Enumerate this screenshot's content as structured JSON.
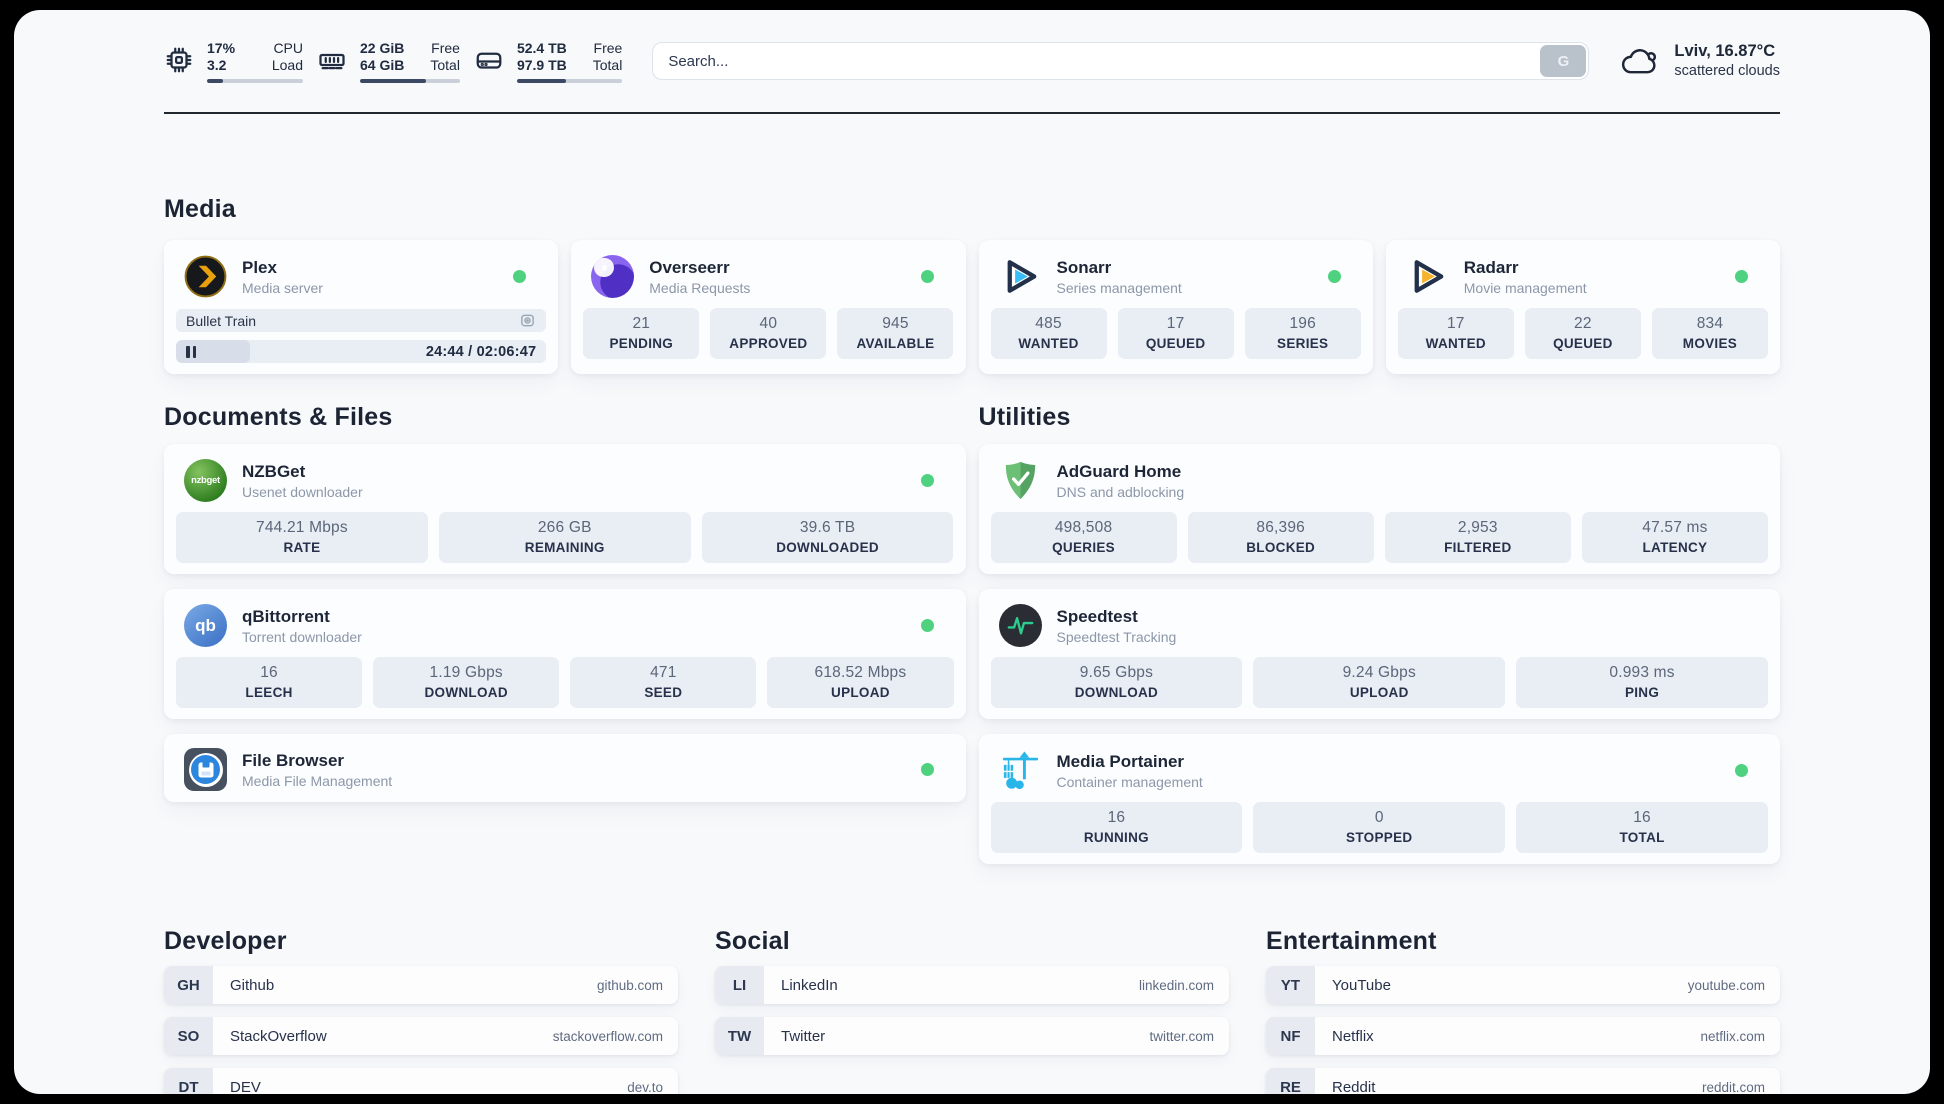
{
  "header": {
    "cpu": {
      "value_top": "17%",
      "value_bottom": "3.2",
      "label_top": "CPU",
      "label_bottom": "Load",
      "progress_percent": 17
    },
    "memory": {
      "value_top": "22 GiB",
      "value_bottom": "64 GiB",
      "label_top": "Free",
      "label_bottom": "Total",
      "progress_percent": 66
    },
    "disk": {
      "value_top": "52.4 TB",
      "value_bottom": "97.9 TB",
      "label_top": "Free",
      "label_bottom": "Total",
      "progress_percent": 47
    },
    "search": {
      "placeholder": "Search...",
      "button_label": "G"
    },
    "weather": {
      "location_temp": "Lviv, 16.87°C",
      "condition": "scattered clouds"
    }
  },
  "sections": {
    "media": "Media",
    "documents": "Documents & Files",
    "utilities": "Utilities",
    "developer": "Developer",
    "social": "Social",
    "entertainment": "Entertainment"
  },
  "apps": {
    "plex": {
      "name": "Plex",
      "subtitle": "Media server",
      "now_playing": "Bullet Train",
      "elapsed": "24:44",
      "duration": "02:06:47",
      "time_display": "24:44 / 02:06:47",
      "progress_percent": 20
    },
    "overseerr": {
      "name": "Overseerr",
      "subtitle": "Media Requests",
      "stats": [
        {
          "value": "21",
          "label": "PENDING"
        },
        {
          "value": "40",
          "label": "APPROVED"
        },
        {
          "value": "945",
          "label": "AVAILABLE"
        }
      ]
    },
    "sonarr": {
      "name": "Sonarr",
      "subtitle": "Series management",
      "stats": [
        {
          "value": "485",
          "label": "WANTED"
        },
        {
          "value": "17",
          "label": "QUEUED"
        },
        {
          "value": "196",
          "label": "SERIES"
        }
      ]
    },
    "radarr": {
      "name": "Radarr",
      "subtitle": "Movie management",
      "stats": [
        {
          "value": "17",
          "label": "WANTED"
        },
        {
          "value": "22",
          "label": "QUEUED"
        },
        {
          "value": "834",
          "label": "MOVIES"
        }
      ]
    },
    "nzbget": {
      "name": "NZBGet",
      "subtitle": "Usenet downloader",
      "icon_text": "nzbget",
      "stats": [
        {
          "value": "744.21 Mbps",
          "label": "RATE"
        },
        {
          "value": "266 GB",
          "label": "REMAINING"
        },
        {
          "value": "39.6 TB",
          "label": "DOWNLOADED"
        }
      ]
    },
    "qbittorrent": {
      "name": "qBittorrent",
      "subtitle": "Torrent downloader",
      "icon_text": "qb",
      "stats": [
        {
          "value": "16",
          "label": "LEECH"
        },
        {
          "value": "1.19 Gbps",
          "label": "DOWNLOAD"
        },
        {
          "value": "471",
          "label": "SEED"
        },
        {
          "value": "618.52 Mbps",
          "label": "UPLOAD"
        }
      ]
    },
    "filebrowser": {
      "name": "File Browser",
      "subtitle": "Media File Management"
    },
    "adguard": {
      "name": "AdGuard Home",
      "subtitle": "DNS and adblocking",
      "stats": [
        {
          "value": "498,508",
          "label": "QUERIES"
        },
        {
          "value": "86,396",
          "label": "BLOCKED"
        },
        {
          "value": "2,953",
          "label": "FILTERED"
        },
        {
          "value": "47.57 ms",
          "label": "LATENCY"
        }
      ]
    },
    "speedtest": {
      "name": "Speedtest",
      "subtitle": "Speedtest Tracking",
      "stats": [
        {
          "value": "9.65 Gbps",
          "label": "DOWNLOAD"
        },
        {
          "value": "9.24 Gbps",
          "label": "UPLOAD"
        },
        {
          "value": "0.993 ms",
          "label": "PING"
        }
      ]
    },
    "portainer": {
      "name": "Media Portainer",
      "subtitle": "Container management",
      "stats": [
        {
          "value": "16",
          "label": "RUNNING"
        },
        {
          "value": "0",
          "label": "STOPPED"
        },
        {
          "value": "16",
          "label": "TOTAL"
        }
      ]
    }
  },
  "bookmarks": {
    "developer": [
      {
        "abbr": "GH",
        "name": "Github",
        "url": "github.com"
      },
      {
        "abbr": "SO",
        "name": "StackOverflow",
        "url": "stackoverflow.com"
      },
      {
        "abbr": "DT",
        "name": "DEV",
        "url": "dev.to"
      }
    ],
    "social": [
      {
        "abbr": "LI",
        "name": "LinkedIn",
        "url": "linkedin.com"
      },
      {
        "abbr": "TW",
        "name": "Twitter",
        "url": "twitter.com"
      }
    ],
    "entertainment": [
      {
        "abbr": "YT",
        "name": "YouTube",
        "url": "youtube.com"
      },
      {
        "abbr": "NF",
        "name": "Netflix",
        "url": "netflix.com"
      },
      {
        "abbr": "RE",
        "name": "Reddit",
        "url": "reddit.com"
      }
    ]
  },
  "colors": {
    "status_online": "#4fd27f",
    "plex_amber": "#e8a00d",
    "sonarr_blue": "#38bdf8",
    "radarr_orange": "#f6b32b",
    "adguard_green": "#68bd71",
    "speedtest_green": "#2ecc8e",
    "portainer_blue": "#29b5e8",
    "stat_box_bg": "#e9edf4",
    "page_bg": "#f7f9fb"
  }
}
